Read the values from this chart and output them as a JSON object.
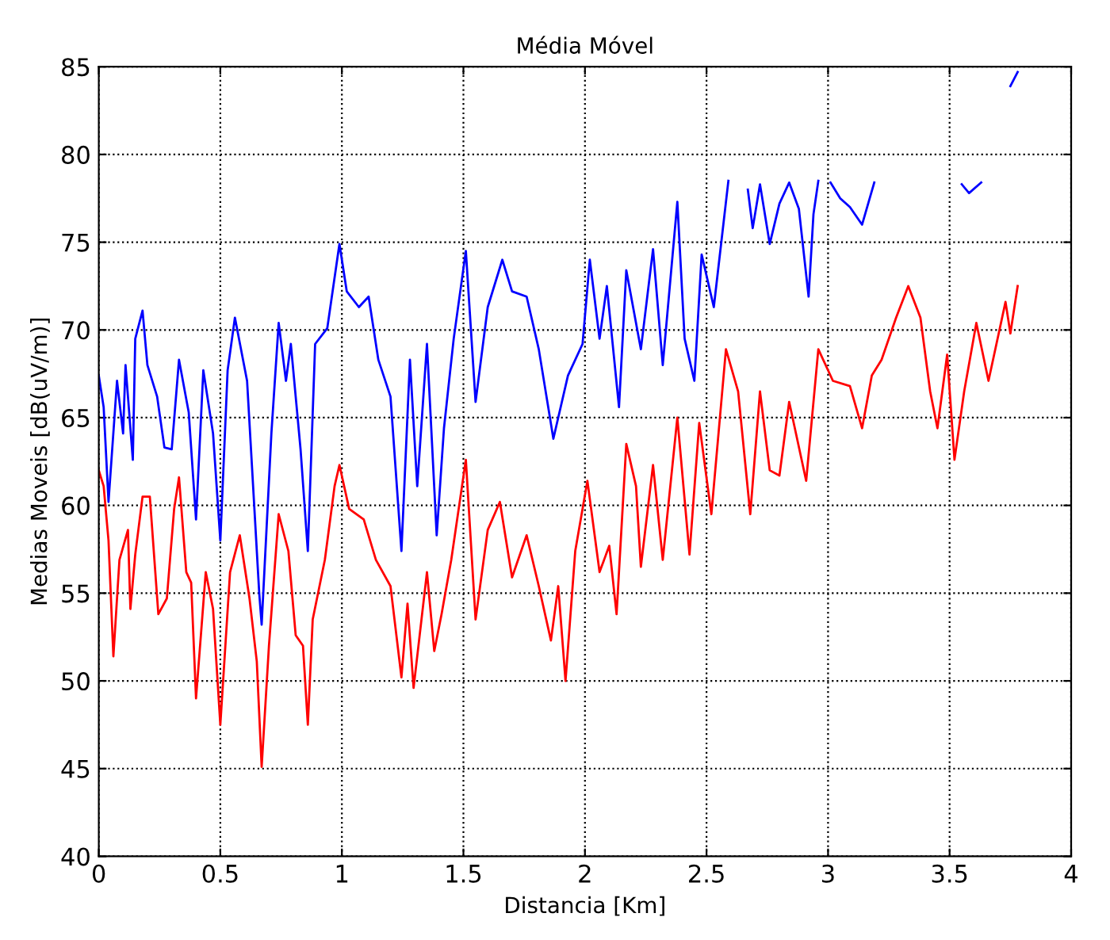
{
  "chart_data": {
    "type": "line",
    "title": "Média Móvel",
    "xlabel": "Distancia [Km]",
    "ylabel": "Medias Moveis [dB(uV/m)]",
    "xlim": [
      0,
      4
    ],
    "ylim": [
      40,
      85
    ],
    "xticks": [
      0,
      0.5,
      1,
      1.5,
      2,
      2.5,
      3,
      3.5,
      4
    ],
    "yticks": [
      40,
      45,
      50,
      55,
      60,
      65,
      70,
      75,
      80,
      85
    ],
    "grid": true,
    "line_style": "solid",
    "marker": "none",
    "series": [
      {
        "color": "#0000ff",
        "x": [
          0,
          0.02,
          0.04,
          0.075,
          0.1,
          0.11,
          0.14,
          0.15,
          0.18,
          0.2,
          0.24,
          0.27,
          0.3,
          0.33,
          0.37,
          0.4,
          0.43,
          0.47,
          0.5,
          0.53,
          0.56,
          0.61,
          0.66,
          0.67,
          0.71,
          0.74,
          0.77,
          0.79,
          0.83,
          0.86,
          0.89,
          0.94,
          0.99,
          1.02,
          1.07,
          1.11,
          1.15,
          1.2,
          1.245,
          1.28,
          1.31,
          1.35,
          1.39,
          1.42,
          1.46,
          1.51,
          1.55,
          1.6,
          1.66,
          1.7,
          1.76,
          1.81,
          1.87,
          1.93,
          1.99,
          2.02,
          2.06,
          2.09,
          2.14,
          2.17,
          2.23,
          2.28,
          2.32,
          2.38,
          2.41,
          2.45,
          2.48,
          2.53,
          2.57,
          2.59,
          2.63,
          2.67,
          2.69,
          2.72,
          2.76,
          2.8,
          2.84,
          2.88,
          2.92,
          2.94,
          2.96,
          2.98,
          3.01,
          3.05,
          3.09,
          3.14,
          3.19,
          3.3,
          3.55,
          3.58,
          3.63,
          3.7,
          3.75,
          3.78
        ],
        "values": [
          67.4,
          65.6,
          60.2,
          67.1,
          64.1,
          68.0,
          62.6,
          69.5,
          71.1,
          68.0,
          66.2,
          63.3,
          63.2,
          68.3,
          65.3,
          59.2,
          67.7,
          64.1,
          58.0,
          67.7,
          70.7,
          67.1,
          55.0,
          53.2,
          64.1,
          70.4,
          67.1,
          69.2,
          63.2,
          57.4,
          69.2,
          70.1,
          74.9,
          72.2,
          71.3,
          71.9,
          68.3,
          66.2,
          57.4,
          68.3,
          61.1,
          69.2,
          58.3,
          64.4,
          69.5,
          74.5,
          65.9,
          71.3,
          74.0,
          72.2,
          71.9,
          68.9,
          63.8,
          67.4,
          69.2,
          74.0,
          69.5,
          72.5,
          65.6,
          73.4,
          68.9,
          74.6,
          68.0,
          77.3,
          69.5,
          67.1,
          74.3,
          71.3,
          76.1,
          78.5,
          null,
          78.0,
          75.8,
          78.3,
          74.9,
          77.2,
          78.4,
          76.9,
          71.9,
          76.6,
          78.5,
          null,
          78.4,
          77.5,
          77.0,
          76.0,
          78.4,
          null,
          78.3,
          77.8,
          78.4,
          null,
          83.9,
          84.7
        ]
      },
      {
        "color": "#ff0000",
        "x": [
          0,
          0.02,
          0.04,
          0.06,
          0.085,
          0.12,
          0.13,
          0.15,
          0.18,
          0.21,
          0.245,
          0.28,
          0.31,
          0.33,
          0.36,
          0.38,
          0.4,
          0.44,
          0.47,
          0.5,
          0.54,
          0.58,
          0.62,
          0.65,
          0.67,
          0.7,
          0.74,
          0.78,
          0.81,
          0.84,
          0.86,
          0.88,
          0.93,
          0.97,
          0.99,
          1.03,
          1.09,
          1.14,
          1.2,
          1.245,
          1.27,
          1.295,
          1.35,
          1.38,
          1.41,
          1.45,
          1.51,
          1.55,
          1.6,
          1.65,
          1.7,
          1.76,
          1.81,
          1.86,
          1.89,
          1.92,
          1.96,
          2.01,
          2.06,
          2.1,
          2.13,
          2.17,
          2.21,
          2.23,
          2.28,
          2.32,
          2.38,
          2.43,
          2.47,
          2.52,
          2.58,
          2.63,
          2.68,
          2.72,
          2.76,
          2.8,
          2.84,
          2.91,
          2.96,
          3.02,
          3.09,
          3.14,
          3.18,
          3.22,
          3.28,
          3.33,
          3.38,
          3.42,
          3.45,
          3.49,
          3.52,
          3.56,
          3.61,
          3.66,
          3.73,
          3.75,
          3.78
        ],
        "values": [
          62.0,
          61.1,
          58.0,
          51.4,
          56.9,
          58.6,
          54.1,
          57.2,
          60.5,
          60.5,
          53.8,
          54.7,
          59.8,
          61.6,
          56.2,
          55.6,
          49.0,
          56.2,
          54.1,
          47.5,
          56.2,
          58.3,
          54.7,
          51.1,
          45.1,
          52.0,
          59.5,
          57.4,
          52.6,
          52.0,
          47.5,
          53.5,
          56.9,
          61.1,
          62.3,
          59.8,
          59.2,
          56.9,
          55.4,
          50.2,
          54.4,
          49.6,
          56.2,
          51.7,
          53.8,
          56.9,
          62.6,
          53.5,
          58.6,
          60.2,
          55.9,
          58.3,
          55.4,
          52.3,
          55.4,
          50.0,
          57.4,
          61.4,
          56.2,
          57.7,
          53.8,
          63.5,
          61.1,
          56.5,
          62.3,
          56.9,
          65.0,
          57.2,
          64.7,
          59.5,
          68.9,
          66.5,
          59.5,
          66.5,
          62.0,
          61.7,
          65.9,
          61.4,
          68.9,
          67.1,
          66.8,
          64.4,
          67.4,
          68.3,
          70.7,
          72.5,
          70.7,
          66.5,
          64.4,
          68.6,
          62.6,
          66.5,
          70.4,
          67.1,
          71.6,
          69.8,
          72.5
        ]
      }
    ]
  }
}
